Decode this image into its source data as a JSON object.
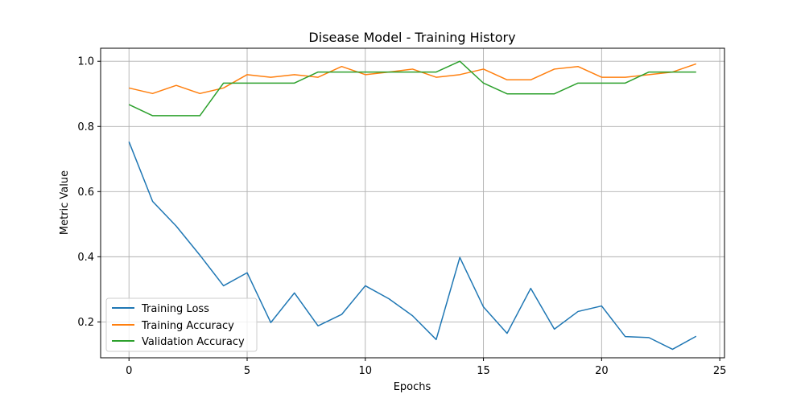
{
  "chart_data": {
    "type": "line",
    "title": "Disease Model - Training History",
    "xlabel": "Epochs",
    "ylabel": "Metric Value",
    "xlim": [
      -1.2,
      25.2
    ],
    "ylim": [
      0.09,
      1.04
    ],
    "xticks": [
      0,
      5,
      10,
      15,
      20,
      25
    ],
    "yticks": [
      0.2,
      0.4,
      0.6,
      0.8,
      1.0
    ],
    "xtick_labels": [
      "0",
      "5",
      "10",
      "15",
      "20",
      "25"
    ],
    "ytick_labels": [
      "0.2",
      "0.4",
      "0.6",
      "0.8",
      "1.0"
    ],
    "grid": true,
    "legend_position": "lower-left",
    "x": [
      0,
      1,
      2,
      3,
      4,
      5,
      6,
      7,
      8,
      9,
      10,
      11,
      12,
      13,
      14,
      15,
      16,
      17,
      18,
      19,
      20,
      21,
      22,
      23,
      24
    ],
    "series": [
      {
        "name": "Training Loss",
        "color": "#1f77b4",
        "values": [
          0.753,
          0.57,
          0.494,
          0.405,
          0.311,
          0.351,
          0.198,
          0.289,
          0.188,
          0.223,
          0.311,
          0.271,
          0.219,
          0.146,
          0.398,
          0.246,
          0.165,
          0.303,
          0.178,
          0.232,
          0.249,
          0.155,
          0.152,
          0.116,
          0.156
        ]
      },
      {
        "name": "Training Accuracy",
        "color": "#ff7f0e",
        "values": [
          0.918,
          0.901,
          0.926,
          0.901,
          0.918,
          0.959,
          0.951,
          0.959,
          0.951,
          0.984,
          0.959,
          0.967,
          0.976,
          0.951,
          0.959,
          0.976,
          0.943,
          0.943,
          0.976,
          0.984,
          0.951,
          0.951,
          0.959,
          0.967,
          0.992
        ]
      },
      {
        "name": "Validation Accuracy",
        "color": "#2ca02c",
        "values": [
          0.867,
          0.833,
          0.833,
          0.833,
          0.933,
          0.933,
          0.933,
          0.933,
          0.967,
          0.967,
          0.967,
          0.967,
          0.967,
          0.967,
          1.0,
          0.933,
          0.9,
          0.9,
          0.9,
          0.933,
          0.933,
          0.933,
          0.967,
          0.967,
          0.967
        ]
      }
    ]
  }
}
